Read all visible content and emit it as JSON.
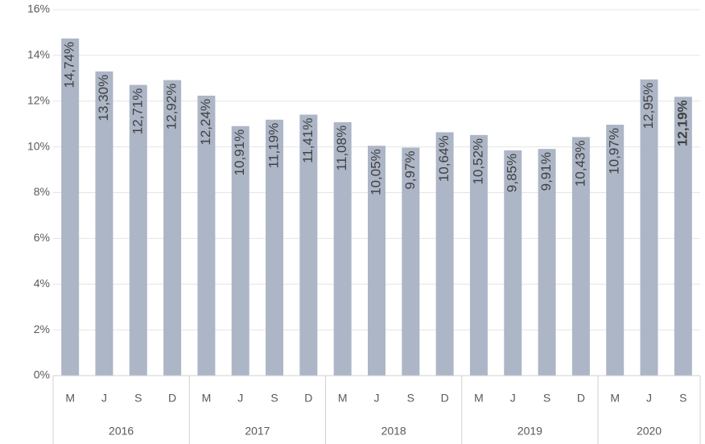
{
  "chart_data": {
    "type": "bar",
    "categories": [
      "M",
      "J",
      "S",
      "D",
      "M",
      "J",
      "S",
      "D",
      "M",
      "J",
      "S",
      "D",
      "M",
      "J",
      "S",
      "D",
      "M",
      "J",
      "S"
    ],
    "groups": [
      {
        "label": "2016",
        "span": 4
      },
      {
        "label": "2017",
        "span": 4
      },
      {
        "label": "2018",
        "span": 4
      },
      {
        "label": "2019",
        "span": 4
      },
      {
        "label": "2020",
        "span": 3
      }
    ],
    "values": [
      14.74,
      13.3,
      12.71,
      12.92,
      12.24,
      10.91,
      11.19,
      11.41,
      11.08,
      10.05,
      9.97,
      10.64,
      10.52,
      9.85,
      9.91,
      10.43,
      10.97,
      12.95,
      12.19
    ],
    "value_labels": [
      "14,74%",
      "13,30%",
      "12,71%",
      "12,92%",
      "12,24%",
      "10,91%",
      "11,19%",
      "11,41%",
      "11,08%",
      "10,05%",
      "9,97%",
      "10,64%",
      "10,52%",
      "9,85%",
      "9,91%",
      "10,43%",
      "10,97%",
      "12,95%",
      "12,19%"
    ],
    "value_label_bold": [
      false,
      false,
      false,
      false,
      false,
      false,
      false,
      false,
      false,
      false,
      false,
      false,
      false,
      false,
      false,
      false,
      false,
      false,
      true
    ],
    "color": "#adb6c7",
    "ylim": [
      0,
      16
    ],
    "yticks": [
      {
        "value": 0,
        "label": "0%"
      },
      {
        "value": 2,
        "label": "2%"
      },
      {
        "value": 4,
        "label": "4%"
      },
      {
        "value": 6,
        "label": "6%"
      },
      {
        "value": 8,
        "label": "8%"
      },
      {
        "value": 10,
        "label": "10%"
      },
      {
        "value": 12,
        "label": "12%"
      },
      {
        "value": 14,
        "label": "14%"
      },
      {
        "value": 16,
        "label": "16%"
      }
    ],
    "grid": true
  }
}
